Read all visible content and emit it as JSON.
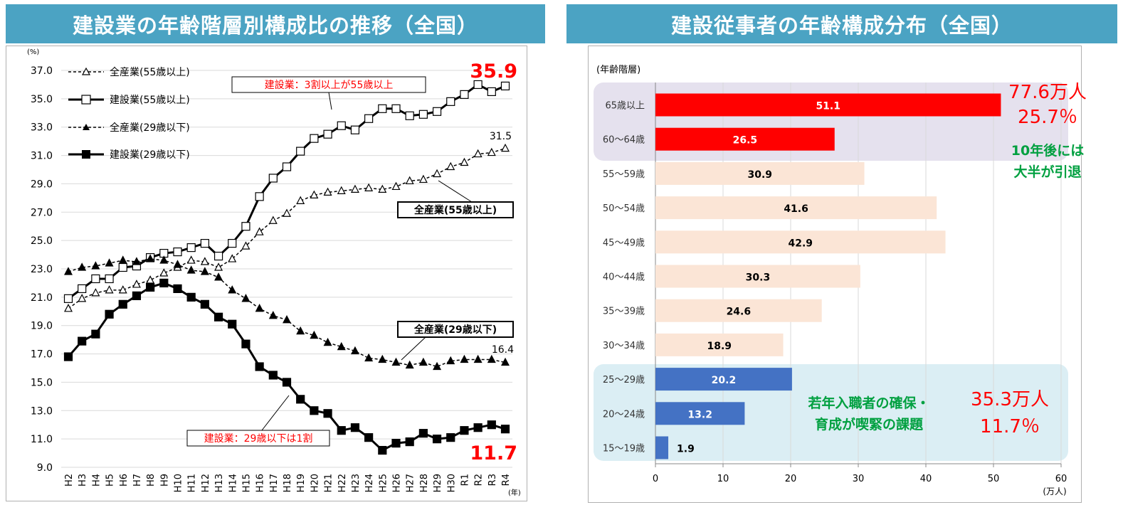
{
  "left_panel": {
    "title": "建設業の年齢階層別構成比の推移（全国）"
  },
  "right_panel": {
    "title": "建設従事者の年齢構成分布（全国）"
  },
  "chart_data": [
    {
      "type": "line",
      "yunit": "(%)",
      "xunit": "(年)",
      "ylim": [
        9.0,
        37.0
      ],
      "yticks": [
        "9.0",
        "11.0",
        "13.0",
        "15.0",
        "17.0",
        "19.0",
        "21.0",
        "23.0",
        "25.0",
        "27.0",
        "29.0",
        "31.0",
        "33.0",
        "35.0",
        "37.0"
      ],
      "categories": [
        "H2",
        "H3",
        "H4",
        "H5",
        "H6",
        "H7",
        "H8",
        "H9",
        "H10",
        "H11",
        "H12",
        "H13",
        "H14",
        "H15",
        "H16",
        "H17",
        "H18",
        "H19",
        "H20",
        "H21",
        "H22",
        "H23",
        "H24",
        "H25",
        "H26",
        "H27",
        "H28",
        "H29",
        "H30",
        "R1",
        "R2",
        "R3",
        "R4"
      ],
      "series": [
        {
          "name": "全産業(55歳以上)",
          "style": "dashed",
          "marker": "triangle-open",
          "values": [
            20.2,
            20.9,
            21.3,
            21.5,
            21.5,
            21.9,
            22.2,
            22.7,
            23.1,
            23.6,
            23.5,
            23.1,
            23.7,
            24.6,
            25.6,
            26.4,
            26.9,
            27.8,
            28.2,
            28.4,
            28.5,
            28.6,
            28.7,
            28.6,
            28.8,
            29.2,
            29.3,
            29.7,
            30.2,
            30.5,
            31.1,
            31.2,
            31.5
          ]
        },
        {
          "name": "建設業(55歳以上)",
          "style": "solid",
          "marker": "square-open",
          "values": [
            20.9,
            21.6,
            22.3,
            22.3,
            23.1,
            23.2,
            23.8,
            24.1,
            24.2,
            24.5,
            24.8,
            23.9,
            24.8,
            26.0,
            28.1,
            29.4,
            30.2,
            31.3,
            32.2,
            32.5,
            33.1,
            32.8,
            33.6,
            34.3,
            34.3,
            33.8,
            33.9,
            34.1,
            34.8,
            35.3,
            36.0,
            35.5,
            35.9
          ]
        },
        {
          "name": "全産業(29歳以下)",
          "style": "dashed",
          "marker": "triangle-filled",
          "values": [
            22.8,
            23.1,
            23.2,
            23.4,
            23.6,
            23.5,
            23.7,
            23.6,
            23.3,
            22.9,
            22.8,
            22.4,
            21.5,
            20.9,
            20.2,
            19.7,
            19.4,
            18.6,
            18.3,
            17.8,
            17.5,
            17.2,
            16.7,
            16.6,
            16.4,
            16.2,
            16.4,
            16.1,
            16.5,
            16.6,
            16.6,
            16.6,
            16.4
          ]
        },
        {
          "name": "建設業(29歳以下)",
          "style": "solid",
          "marker": "square-filled",
          "values": [
            16.8,
            17.9,
            18.4,
            19.8,
            20.5,
            21.1,
            21.7,
            22.0,
            21.6,
            21.0,
            20.5,
            19.6,
            19.1,
            17.7,
            16.1,
            15.5,
            15.0,
            13.8,
            13.0,
            12.8,
            11.6,
            11.8,
            11.1,
            10.2,
            10.7,
            10.8,
            11.4,
            11.0,
            11.1,
            11.6,
            11.8,
            12.0,
            11.7
          ]
        }
      ],
      "end_labels": {
        "s0": "31.5",
        "s1": "35.9",
        "s2": "16.4",
        "s3": "11.7"
      },
      "callouts": {
        "c1": "建設業：3割以上が55歳以上",
        "c2": "全産業(55歳以上)",
        "c3": "全産業(29歳以下)",
        "c4": "建設業：29歳以下は1割"
      }
    },
    {
      "type": "bar",
      "orientation": "horizontal",
      "ylabel": "(年齢階層)",
      "xunit": "(万人)",
      "xlim": [
        0,
        60
      ],
      "xticks": [
        "0",
        "10",
        "20",
        "30",
        "40",
        "50",
        "60"
      ],
      "categories": [
        "65歳以上",
        "60～64歳",
        "55～59歳",
        "50～54歳",
        "45～49歳",
        "40～44歳",
        "35～39歳",
        "30～34歳",
        "25～29歳",
        "20～24歳",
        "15～19歳"
      ],
      "values": [
        51.1,
        26.5,
        30.9,
        41.6,
        42.9,
        30.3,
        24.6,
        18.9,
        20.2,
        13.2,
        1.9
      ],
      "value_labels": [
        "51.1",
        "26.5",
        "30.9",
        "41.6",
        "42.9",
        "30.3",
        "24.6",
        "18.9",
        "20.2",
        "13.2",
        "1.9"
      ],
      "colors": {
        "senior": "#ff0000",
        "middle": "#fbe5d6",
        "young": "#4472c4",
        "senior_bg": "#e5e1ee",
        "young_bg": "#dbeef4"
      },
      "annotations": {
        "senior_total": "77.6万人",
        "senior_pct": "25.7％",
        "senior_note1": "10年後には",
        "senior_note2": "大半が引退",
        "young_total": "35.3万人",
        "young_pct": "11.7％",
        "young_note1": "若年入職者の確保・",
        "young_note2": "育成が喫緊の課題"
      }
    }
  ]
}
